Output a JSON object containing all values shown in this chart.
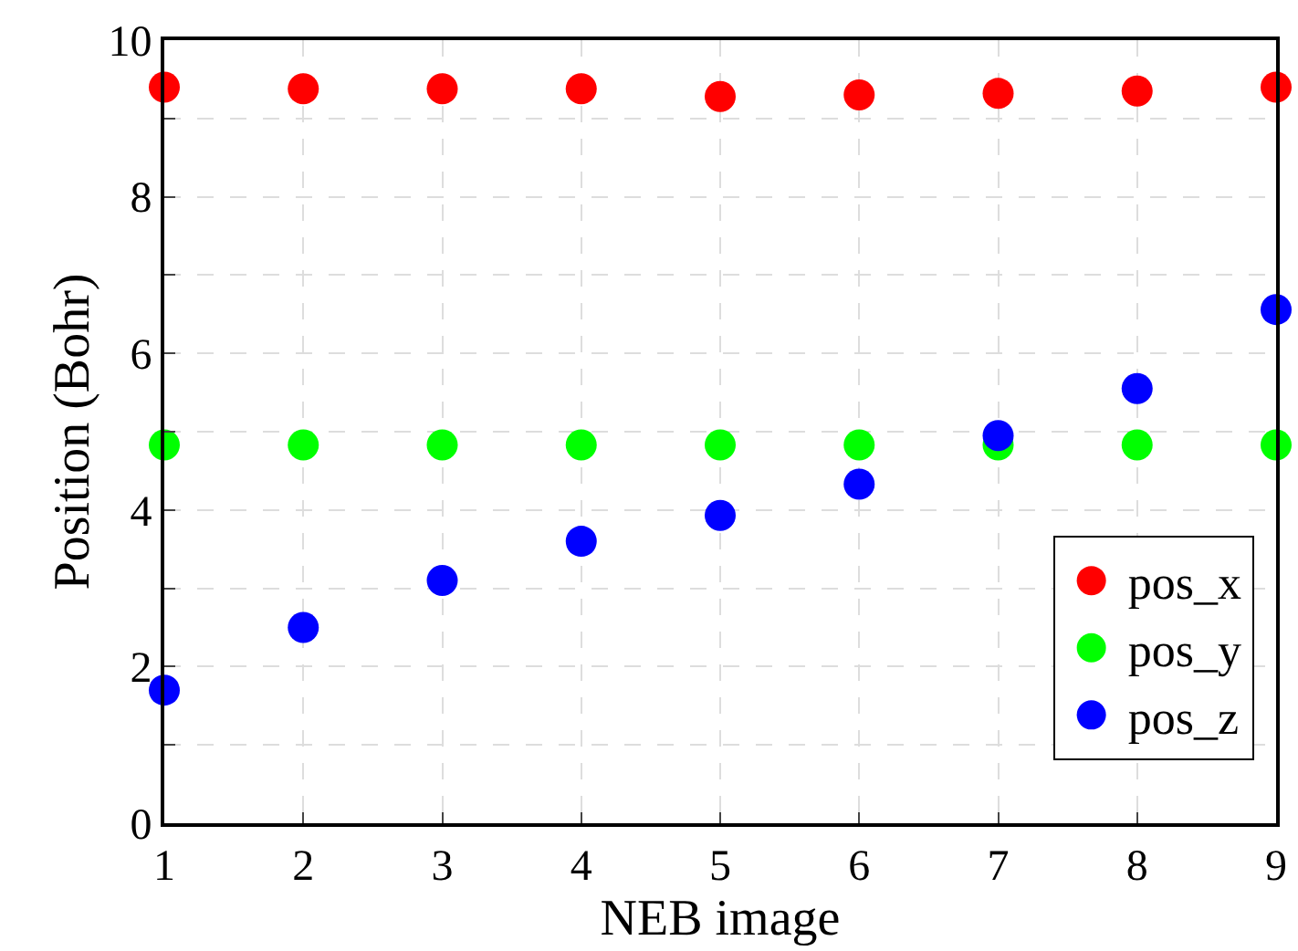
{
  "chart_data": {
    "type": "scatter",
    "xlabel": "NEB image",
    "ylabel": "Position (Bohr)",
    "x": [
      1,
      2,
      3,
      4,
      5,
      6,
      7,
      8,
      9
    ],
    "series": [
      {
        "name": "pos_x",
        "color": "#ff0000",
        "values": [
          9.4,
          9.38,
          9.38,
          9.38,
          9.28,
          9.3,
          9.32,
          9.35,
          9.4
        ]
      },
      {
        "name": "pos_y",
        "color": "#00ff00",
        "values": [
          4.83,
          4.83,
          4.83,
          4.83,
          4.83,
          4.83,
          4.83,
          4.83,
          4.83
        ]
      },
      {
        "name": "pos_z",
        "color": "#0000ff",
        "values": [
          1.7,
          2.5,
          3.1,
          3.6,
          3.93,
          4.33,
          4.95,
          5.55,
          6.56
        ]
      }
    ],
    "xlim": [
      1,
      9
    ],
    "xticks": [
      1,
      2,
      3,
      4,
      5,
      6,
      7,
      8,
      9
    ],
    "ylim": [
      0,
      10
    ],
    "yticks": [
      0,
      {
        "value": 1,
        "label": null
      },
      2,
      {
        "value": 3,
        "label": null
      },
      4,
      {
        "value": 5,
        "label": null
      },
      6,
      {
        "value": 7,
        "label": null
      },
      8,
      {
        "value": 9,
        "label": null
      },
      10
    ],
    "grid": true,
    "legend": "bottom right",
    "marker": "circle"
  }
}
